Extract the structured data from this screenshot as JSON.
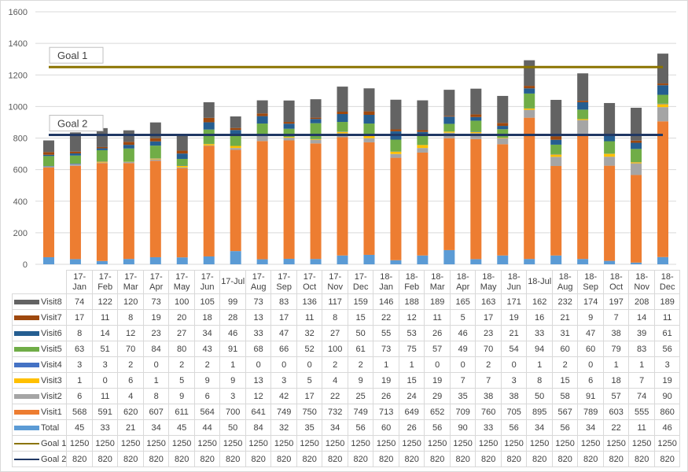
{
  "chart_data": {
    "type": "bar",
    "stacked": true,
    "title": "",
    "xlabel": "",
    "ylabel": "",
    "ylim": [
      0,
      1600
    ],
    "yticks": [
      0,
      200,
      400,
      600,
      800,
      1000,
      1200,
      1400,
      1600
    ],
    "grid": true,
    "legend": "data-table",
    "categories": [
      "17-Jan",
      "17-Feb",
      "17-Mar",
      "17-Apr",
      "17-May",
      "17-Jun",
      "17-Jul",
      "17-Aug",
      "17-Sep",
      "17-Oct",
      "17-Nov",
      "17-Dec",
      "18-Jan",
      "18-Feb",
      "18-Mar",
      "18-Apr",
      "18-May",
      "18-Jun",
      "18-Jul",
      "18-Aug",
      "18-Sep",
      "18-Oct",
      "18-Nov",
      "18-Dec"
    ],
    "series": [
      {
        "name": "Visit8",
        "color": "#636363",
        "values": [
          74,
          122,
          120,
          73,
          100,
          105,
          99,
          73,
          83,
          136,
          117,
          159,
          146,
          188,
          189,
          165,
          163,
          171,
          162,
          232,
          174,
          197,
          208,
          189
        ]
      },
      {
        "name": "Visit7",
        "color": "#9e480e",
        "values": [
          17,
          11,
          8,
          19,
          20,
          18,
          28,
          13,
          17,
          11,
          8,
          15,
          22,
          12,
          11,
          5,
          17,
          19,
          16,
          21,
          9,
          7,
          14,
          11
        ]
      },
      {
        "name": "Visit6",
        "color": "#255e91",
        "values": [
          8,
          14,
          12,
          23,
          27,
          34,
          46,
          33,
          47,
          32,
          27,
          50,
          55,
          53,
          26,
          46,
          23,
          21,
          33,
          31,
          47,
          38,
          39,
          61
        ]
      },
      {
        "name": "Visit5",
        "color": "#70ad47",
        "values": [
          63,
          51,
          70,
          84,
          80,
          43,
          91,
          68,
          66,
          52,
          100,
          61,
          73,
          75,
          57,
          49,
          70,
          54,
          94,
          60,
          60,
          79,
          83,
          56
        ]
      },
      {
        "name": "Visit4",
        "color": "#4472c4",
        "values": [
          3,
          3,
          2,
          0,
          2,
          2,
          1,
          0,
          0,
          0,
          2,
          2,
          1,
          1,
          0,
          0,
          2,
          0,
          1,
          2,
          0,
          1,
          1,
          3
        ]
      },
      {
        "name": "Visit3",
        "color": "#ffc000",
        "values": [
          1,
          0,
          6,
          1,
          5,
          9,
          9,
          13,
          3,
          5,
          4,
          9,
          19,
          15,
          19,
          7,
          7,
          3,
          8,
          15,
          6,
          18,
          7,
          19
        ]
      },
      {
        "name": "Visit2",
        "color": "#a5a5a5",
        "values": [
          6,
          11,
          4,
          8,
          9,
          6,
          3,
          12,
          42,
          17,
          22,
          25,
          26,
          24,
          29,
          35,
          38,
          38,
          50,
          58,
          91,
          57,
          74,
          90
        ]
      },
      {
        "name": "Visit1",
        "color": "#ed7d31",
        "values": [
          568,
          591,
          620,
          607,
          611,
          564,
          700,
          641,
          749,
          750,
          732,
          749,
          713,
          649,
          652,
          709,
          760,
          705,
          895,
          567,
          789,
          603,
          555,
          860
        ]
      },
      {
        "name": "Total",
        "color": "#5b9bd5",
        "values": [
          45,
          33,
          21,
          34,
          45,
          44,
          50,
          84,
          32,
          35,
          34,
          56,
          60,
          26,
          56,
          90,
          33,
          56,
          34,
          56,
          34,
          22,
          11,
          46
        ]
      },
      {
        "name": "Goal 1",
        "color": "#8b7400",
        "type": "line",
        "values": [
          1250,
          1250,
          1250,
          1250,
          1250,
          1250,
          1250,
          1250,
          1250,
          1250,
          1250,
          1250,
          1250,
          1250,
          1250,
          1250,
          1250,
          1250,
          1250,
          1250,
          1250,
          1250,
          1250,
          1250
        ]
      },
      {
        "name": "Goal 2",
        "color": "#203864",
        "type": "line",
        "values": [
          820,
          820,
          820,
          820,
          820,
          820,
          820,
          820,
          820,
          820,
          820,
          820,
          820,
          820,
          820,
          820,
          820,
          820,
          820,
          820,
          820,
          820,
          820,
          820
        ]
      }
    ],
    "stack_order": [
      "Total",
      "Visit1",
      "Visit2",
      "Visit3",
      "Visit4",
      "Visit5",
      "Visit6",
      "Visit7",
      "Visit8"
    ],
    "annotations": [
      "Goal 1",
      "Goal 2"
    ]
  }
}
